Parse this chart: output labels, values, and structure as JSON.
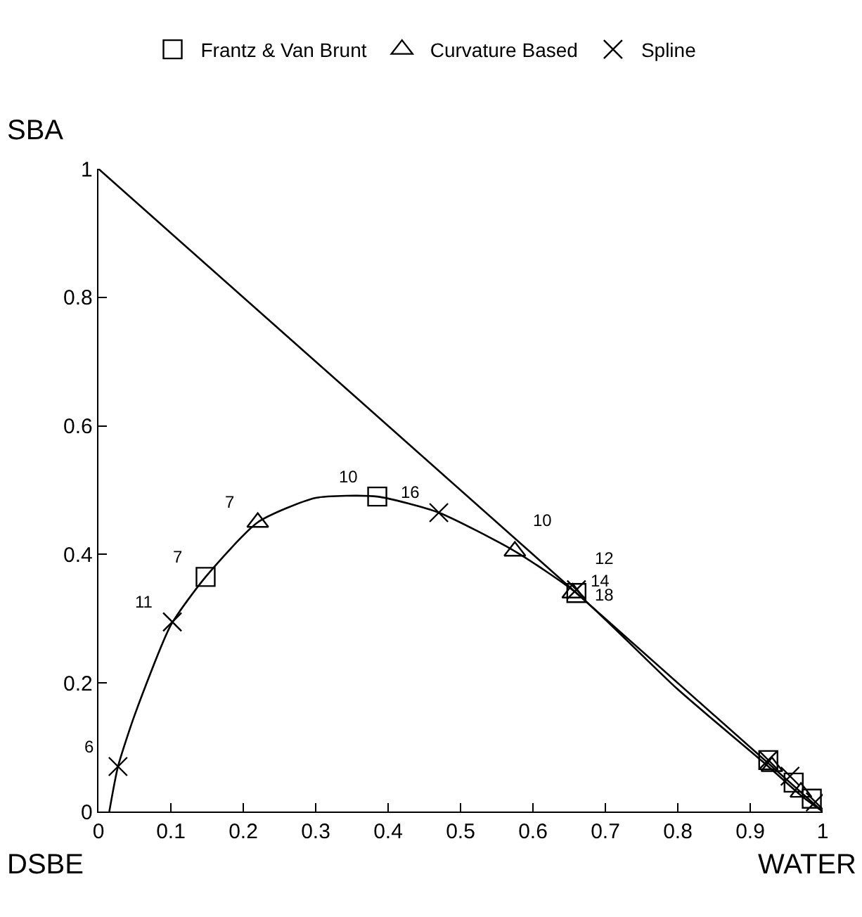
{
  "chart_data": {
    "type": "scatter",
    "xlabel": "WATER",
    "ylabel": "SBA",
    "xlim": [
      0,
      1
    ],
    "ylim": [
      0,
      1
    ],
    "xticks": [
      0,
      0.1,
      0.2,
      0.3,
      0.4,
      0.5,
      0.6,
      0.7,
      0.8,
      0.9,
      1
    ],
    "yticks": [
      0,
      0.2,
      0.4,
      0.6,
      0.8,
      1
    ],
    "legend": "top",
    "grid": false,
    "series": [
      {
        "type": "line",
        "color": "#000000",
        "marker": "none",
        "x": [
          0,
          1
        ],
        "values": [
          1,
          0
        ]
      },
      {
        "type": "line",
        "color": "#000000",
        "marker": "none",
        "x": [
          0.015,
          0.027,
          0.05,
          0.1,
          0.148,
          0.22,
          0.3,
          0.385,
          0.47,
          0.575,
          0.66,
          0.8,
          0.925,
          0.97,
          1
        ],
        "values": [
          0,
          0.07,
          0.15,
          0.29,
          0.365,
          0.45,
          0.488,
          0.49,
          0.465,
          0.405,
          0.34,
          0.19,
          0.07,
          0.025,
          0
        ]
      },
      {
        "name": "Frantz & Van Brunt",
        "color": "#000000",
        "marker": "square",
        "x": [
          0.148,
          0.385,
          0.66,
          0.925,
          0.96,
          0.985
        ],
        "values": [
          0.365,
          0.49,
          0.34,
          0.08,
          0.045,
          0.02
        ]
      },
      {
        "name": "Curvature Based",
        "color": "#000000",
        "marker": "triangle",
        "x": [
          0.22,
          0.575,
          0.655,
          0.93,
          0.97
        ],
        "values": [
          0.45,
          0.405,
          0.34,
          0.07,
          0.03
        ]
      },
      {
        "name": "Spline",
        "color": "#000000",
        "marker": "cross",
        "x": [
          0.027,
          0.102,
          0.47,
          0.66,
          0.925,
          0.955,
          0.99
        ],
        "values": [
          0.07,
          0.295,
          0.465,
          0.345,
          0.08,
          0.055,
          0.015
        ]
      }
    ],
    "annotations": [
      {
        "text": "6",
        "x": 0.027,
        "y": 0.07
      },
      {
        "text": "11",
        "x": 0.102,
        "y": 0.295
      },
      {
        "text": "7",
        "x": 0.148,
        "y": 0.365
      },
      {
        "text": "7",
        "x": 0.22,
        "y": 0.45
      },
      {
        "text": "10",
        "x": 0.385,
        "y": 0.49
      },
      {
        "text": "16",
        "x": 0.47,
        "y": 0.465
      },
      {
        "text": "10",
        "x": 0.575,
        "y": 0.405
      },
      {
        "text": "12",
        "x": 0.66,
        "y": 0.345
      },
      {
        "text": "14",
        "x": 0.655,
        "y": 0.34
      },
      {
        "text": "18",
        "x": 0.66,
        "y": 0.345
      },
      "DSBE"
    ]
  }
}
